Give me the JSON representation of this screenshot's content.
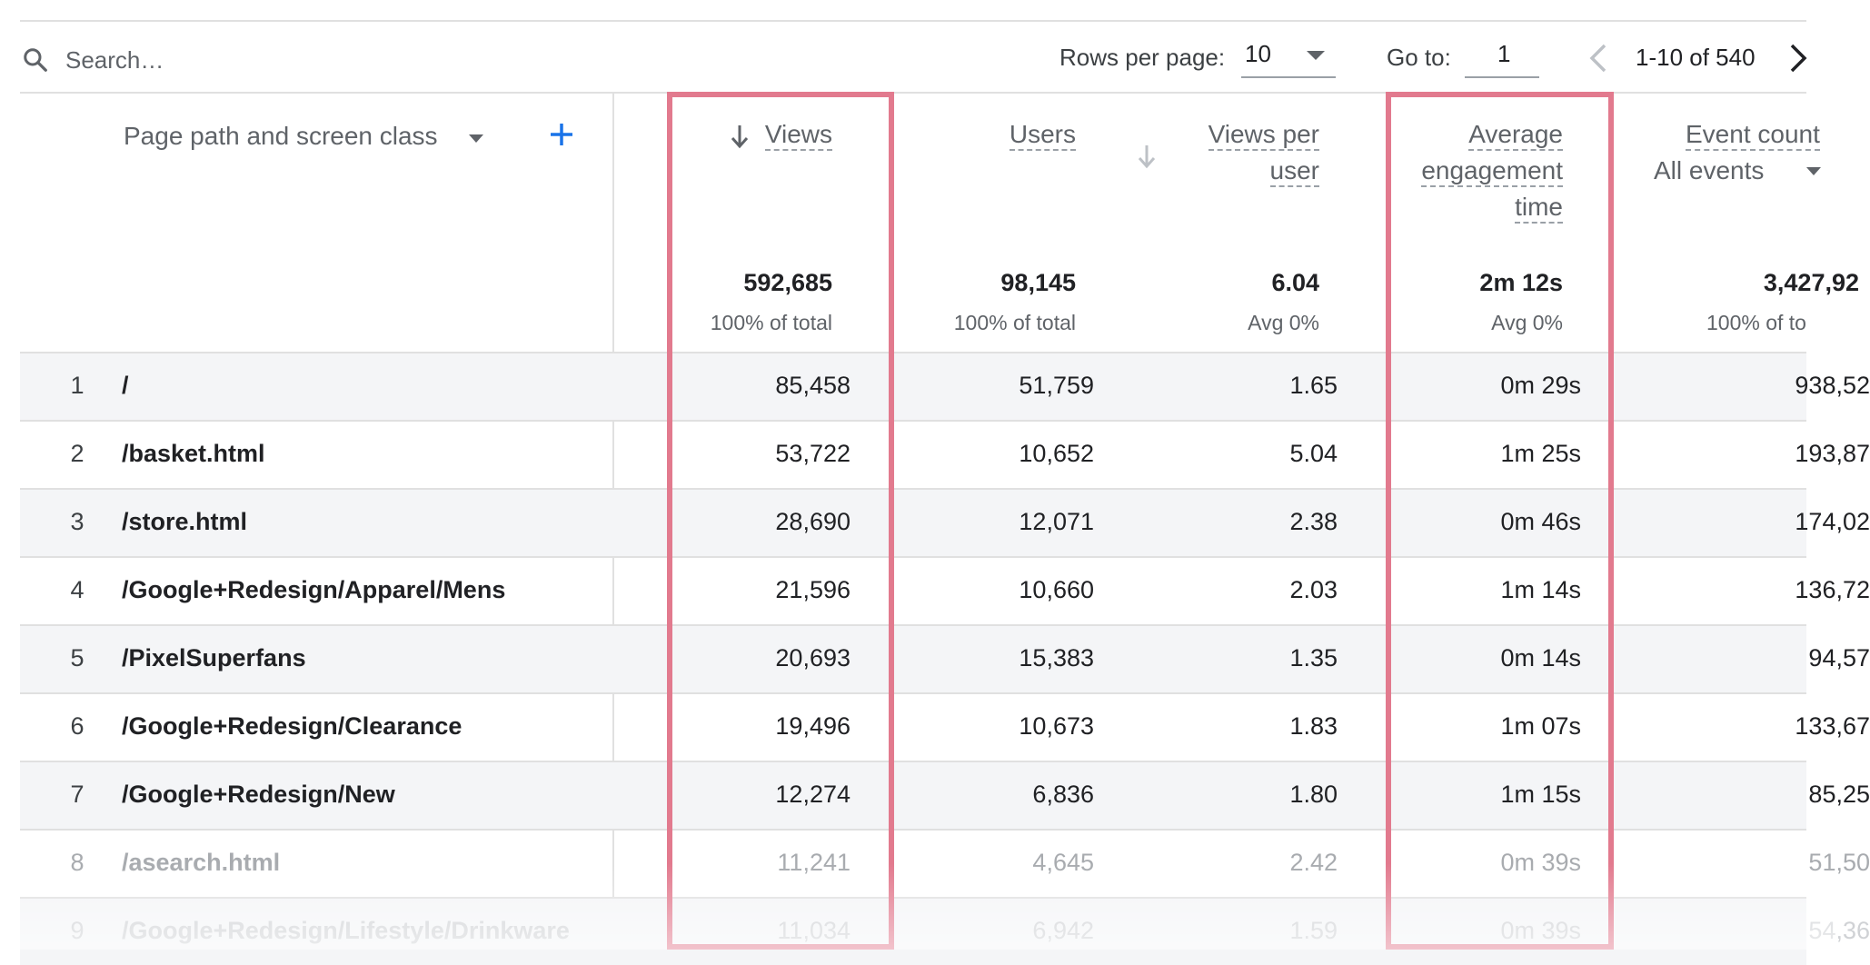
{
  "toolbar": {
    "search_placeholder": "Search…",
    "rows_per_page_label": "Rows per page:",
    "rows_per_page_value": "10",
    "go_to_label": "Go to:",
    "go_to_value": "1",
    "range_text": "1-10 of 540"
  },
  "table": {
    "dimension_header": "Page path and screen class",
    "columns": {
      "views": "Views",
      "users": "Users",
      "views_per_user_1": "Views per",
      "views_per_user_2": "user",
      "avg_eng_1": "Average",
      "avg_eng_2": "engagement",
      "avg_eng_3": "time",
      "event_count": "Event count",
      "event_filter": "All events"
    },
    "totals": {
      "views": "592,685",
      "views_sub": "100% of total",
      "users": "98,145",
      "users_sub": "100% of total",
      "vpu": "6.04",
      "vpu_sub": "Avg 0%",
      "aet": "2m 12s",
      "aet_sub": "Avg 0%",
      "events": "3,427,92",
      "events_sub": "100% of to"
    },
    "rows": [
      {
        "idx": "1",
        "path": "/",
        "views": "85,458",
        "users": "51,759",
        "vpu": "1.65",
        "aet": "0m 29s",
        "events": "938,52"
      },
      {
        "idx": "2",
        "path": "/basket.html",
        "views": "53,722",
        "users": "10,652",
        "vpu": "5.04",
        "aet": "1m 25s",
        "events": "193,87"
      },
      {
        "idx": "3",
        "path": "/store.html",
        "views": "28,690",
        "users": "12,071",
        "vpu": "2.38",
        "aet": "0m 46s",
        "events": "174,02"
      },
      {
        "idx": "4",
        "path": "/Google+Redesign/Apparel/Mens",
        "views": "21,596",
        "users": "10,660",
        "vpu": "2.03",
        "aet": "1m 14s",
        "events": "136,72"
      },
      {
        "idx": "5",
        "path": "/PixelSuperfans",
        "views": "20,693",
        "users": "15,383",
        "vpu": "1.35",
        "aet": "0m 14s",
        "events": "94,57"
      },
      {
        "idx": "6",
        "path": "/Google+Redesign/Clearance",
        "views": "19,496",
        "users": "10,673",
        "vpu": "1.83",
        "aet": "1m 07s",
        "events": "133,67"
      },
      {
        "idx": "7",
        "path": "/Google+Redesign/New",
        "views": "12,274",
        "users": "6,836",
        "vpu": "1.80",
        "aet": "1m 15s",
        "events": "85,25"
      },
      {
        "idx": "8",
        "path": "/asearch.html",
        "views": "11,241",
        "users": "4,645",
        "vpu": "2.42",
        "aet": "0m 39s",
        "events": "51,50"
      },
      {
        "idx": "9",
        "path": "/Google+Redesign/Lifestyle/Drinkware",
        "views": "11,034",
        "users": "6,942",
        "vpu": "1.59",
        "aet": "0m 39s",
        "events": "54,36"
      }
    ]
  },
  "colors": {
    "highlight": "#e27a8e",
    "accent": "#1a73e8"
  }
}
